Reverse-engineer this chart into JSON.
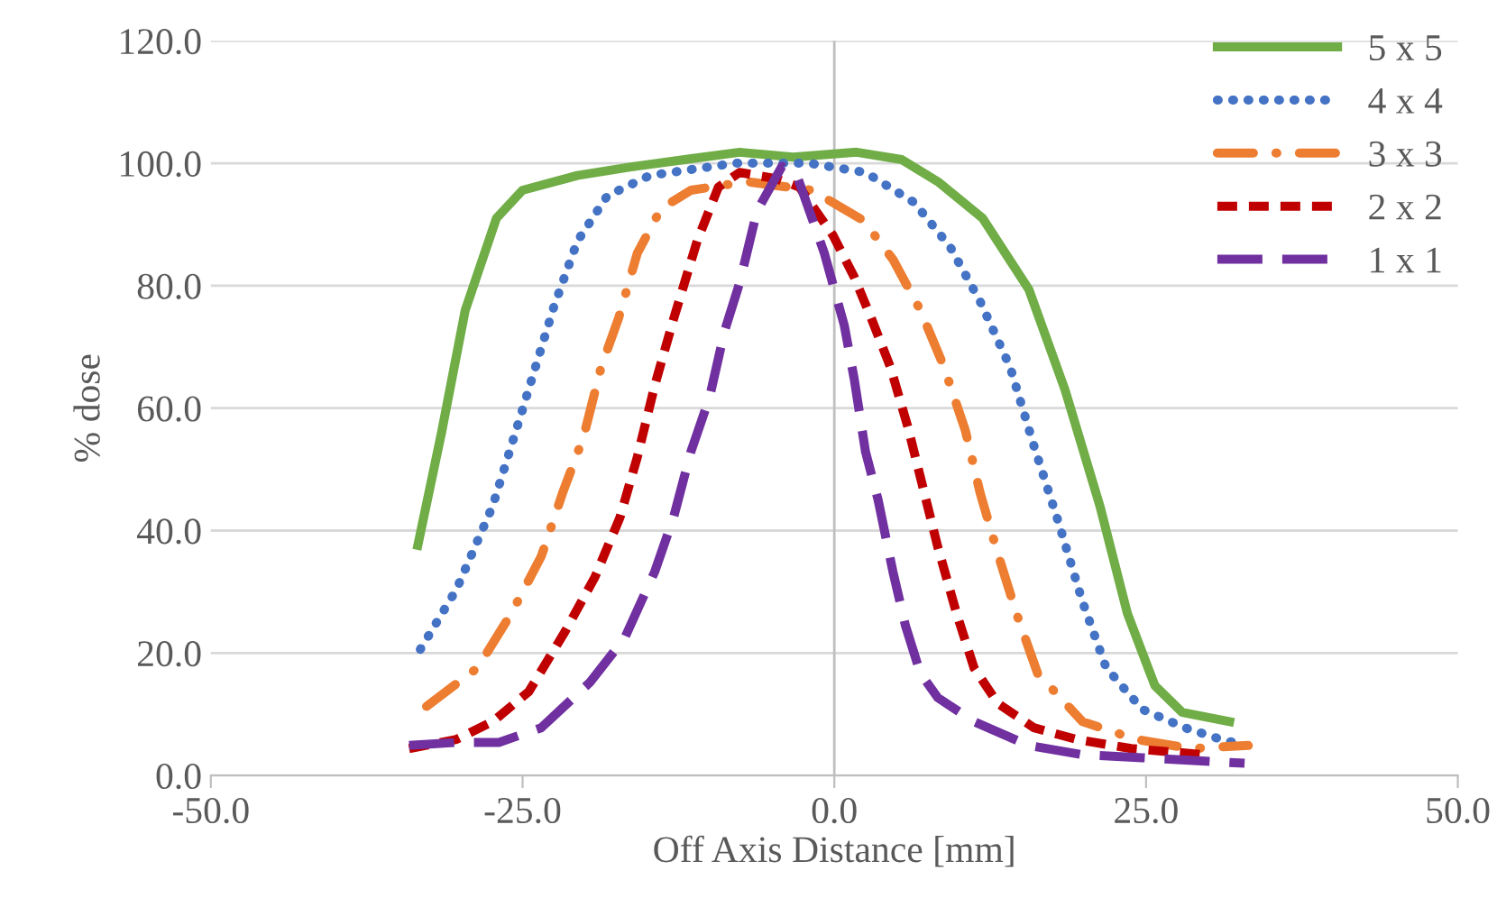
{
  "chart_data": {
    "type": "line",
    "xlabel": "Off Axis Distance [mm]",
    "ylabel": "% dose",
    "xlim": [
      -50,
      50
    ],
    "ylim": [
      0,
      120
    ],
    "xticks": [
      {
        "value": -50,
        "label": "-50.0"
      },
      {
        "value": -25,
        "label": "-25.0"
      },
      {
        "value": 0,
        "label": "0.0"
      },
      {
        "value": 25,
        "label": "25.0"
      },
      {
        "value": 50,
        "label": "50.0"
      }
    ],
    "yticks": [
      {
        "value": 0,
        "label": "0.0"
      },
      {
        "value": 20,
        "label": "20.0"
      },
      {
        "value": 40,
        "label": "40.0"
      },
      {
        "value": 60,
        "label": "60.0"
      },
      {
        "value": 80,
        "label": "80.0"
      },
      {
        "value": 100,
        "label": "100.0"
      },
      {
        "value": 120,
        "label": "120.0"
      }
    ],
    "grid": "y",
    "legend": "top right",
    "marker": "none",
    "ref_lines": [
      {
        "axis": "x",
        "value": 0,
        "color": "#bfbfbf",
        "line_style": "solid"
      }
    ],
    "series": [
      {
        "name": "5 x 5",
        "color": "#70ad47",
        "line_style": "solid",
        "x": [
          -33.4,
          -31.5,
          -29.6,
          -27.1,
          -25,
          -20.6,
          -16.3,
          -12,
          -7.6,
          -3.3,
          1.8,
          5.4,
          8.3,
          11.9,
          15.6,
          18.5,
          21.3,
          23.5,
          25.7,
          27.9,
          31.7
        ],
        "values": [
          37.6,
          56,
          76,
          91,
          95.6,
          98,
          99.4,
          100.6,
          101.8,
          101,
          101.8,
          100.6,
          97,
          91,
          79.4,
          63,
          44,
          26.5,
          14.7,
          10.3,
          8.8
        ]
      },
      {
        "name": "4 x 4",
        "color": "#4472c4",
        "line_style": "dotted",
        "x": [
          -33.2,
          -30.3,
          -27.4,
          -25,
          -22.5,
          -20.6,
          -18.2,
          -14.8,
          -8,
          -2,
          2.5,
          6.4,
          9.3,
          11.7,
          14.1,
          16,
          18,
          19.9,
          21.8,
          24.7,
          28.1,
          31,
          32.2
        ],
        "values": [
          20.6,
          30.4,
          44,
          59.8,
          76.5,
          87.3,
          94.7,
          98,
          100,
          100,
          98.5,
          93.6,
          86.3,
          77.4,
          66.7,
          53.9,
          41.2,
          28.4,
          17.6,
          10.8,
          7.8,
          5.9,
          5.3
        ]
      },
      {
        "name": "3 x 3",
        "color": "#ed7d31",
        "line_style": "dashdot",
        "x": [
          -32.7,
          -28.6,
          -25.9,
          -23.5,
          -21.8,
          -20.1,
          -18.7,
          -17.3,
          -15.8,
          -13.9,
          -11.5,
          -7,
          -1.8,
          2.3,
          4.7,
          6.9,
          8.8,
          10.5,
          11.7,
          13.1,
          14.6,
          16.3,
          19.9,
          24.2,
          28.6,
          33.2
        ],
        "values": [
          11.3,
          17.6,
          26.5,
          35.8,
          46.1,
          55.4,
          66.7,
          74.7,
          85.3,
          92.6,
          95.6,
          97,
          95.6,
          90.7,
          84.3,
          76,
          66.7,
          56.4,
          46.1,
          36.3,
          26.5,
          16.7,
          8.8,
          5.9,
          4.4,
          4.9
        ]
      },
      {
        "name": "2 x 2",
        "color": "#c00000",
        "line_style": "dashed",
        "x": [
          -34.1,
          -30.3,
          -27.4,
          -24.5,
          -21.6,
          -19.2,
          -17.2,
          -15.8,
          -14.4,
          -12.9,
          -11,
          -9.3,
          -7.6,
          -4.7,
          -2.8,
          -0.1,
          1.6,
          3,
          4.5,
          5.9,
          7.1,
          8.3,
          9.8,
          11.2,
          13.1,
          16,
          19.4,
          23.8,
          29.6
        ],
        "values": [
          4.4,
          5.9,
          8.8,
          13.7,
          23.5,
          32.4,
          42.1,
          52,
          63.7,
          74.5,
          87.3,
          96.1,
          98.5,
          97.5,
          96.1,
          88.2,
          81.4,
          74.5,
          66.7,
          56.9,
          47.1,
          37.3,
          26.5,
          17.6,
          11.8,
          7.8,
          5.9,
          4.4,
          3.4
        ]
      },
      {
        "name": "1 x 1",
        "color": "#7030a0",
        "line_style": "longdashed",
        "x": [
          -34.1,
          -30.3,
          -26.9,
          -23.5,
          -19.6,
          -16.8,
          -14.4,
          -12.9,
          -11.5,
          -10,
          -8.8,
          -7.6,
          -6.2,
          -4.2,
          -3,
          -0.8,
          0.8,
          1.6,
          2.5,
          3.5,
          4.7,
          5.7,
          6.9,
          8.3,
          11.2,
          15.6,
          19.9,
          24.7,
          32.9
        ],
        "values": [
          4.9,
          5.4,
          5.4,
          7.8,
          15.2,
          22.5,
          33.3,
          42.1,
          52.9,
          61.8,
          72.6,
          80.4,
          92.2,
          99.5,
          98,
          85.3,
          73.5,
          64.7,
          52.9,
          45.1,
          33.3,
          24.5,
          16.7,
          12.7,
          8.8,
          4.9,
          3.4,
          2.9,
          2
        ]
      }
    ]
  }
}
